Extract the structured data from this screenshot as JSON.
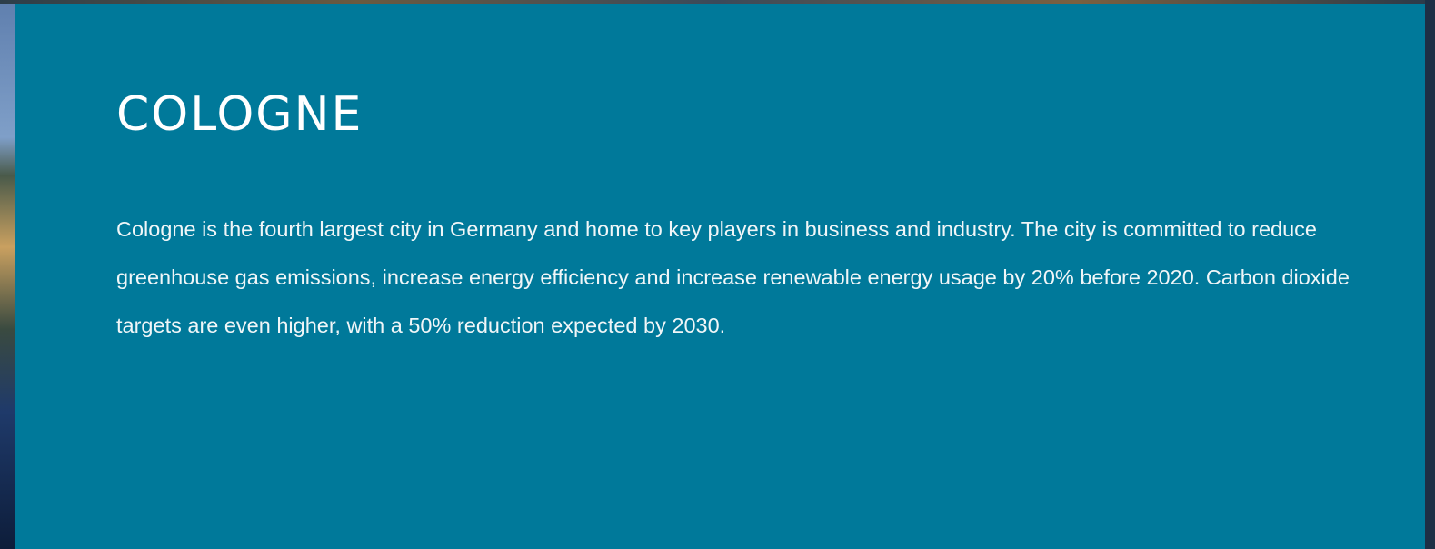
{
  "panel": {
    "title": "COLOGNE",
    "body": "Cologne is the fourth largest city in Germany and home to key players in business and industry. The city is committed to reduce greenhouse gas emissions, increase energy efficiency and increase renewable energy usage by 20% before 2020. Carbon dioxide targets are even higher, with a 50% reduction expected by 2030."
  }
}
